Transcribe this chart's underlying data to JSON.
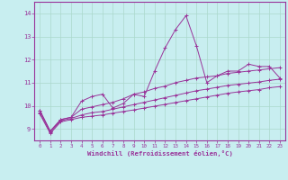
{
  "xlabel": "Windchill (Refroidissement éolien,°C)",
  "xlim": [
    -0.5,
    23.5
  ],
  "ylim": [
    8.5,
    14.5
  ],
  "xticks": [
    0,
    1,
    2,
    3,
    4,
    5,
    6,
    7,
    8,
    9,
    10,
    11,
    12,
    13,
    14,
    15,
    16,
    17,
    18,
    19,
    20,
    21,
    22,
    23
  ],
  "yticks": [
    9,
    10,
    11,
    12,
    13,
    14
  ],
  "background_color": "#c8eef0",
  "line_color": "#993399",
  "grid_color": "#aad8cc",
  "series": [
    [
      9.8,
      8.9,
      9.4,
      9.5,
      10.2,
      10.4,
      10.5,
      9.9,
      10.1,
      10.5,
      10.4,
      11.5,
      12.5,
      13.3,
      13.9,
      12.6,
      11.0,
      11.3,
      11.5,
      11.5,
      11.8,
      11.7,
      11.7,
      11.2
    ],
    [
      9.8,
      8.9,
      9.4,
      9.5,
      9.85,
      9.95,
      10.05,
      10.15,
      10.3,
      10.5,
      10.6,
      10.75,
      10.85,
      11.0,
      11.1,
      11.2,
      11.25,
      11.3,
      11.4,
      11.45,
      11.5,
      11.55,
      11.6,
      11.65
    ],
    [
      9.7,
      8.85,
      9.35,
      9.45,
      9.6,
      9.7,
      9.75,
      9.85,
      9.95,
      10.05,
      10.15,
      10.25,
      10.35,
      10.45,
      10.55,
      10.65,
      10.72,
      10.8,
      10.88,
      10.93,
      10.98,
      11.03,
      11.1,
      11.15
    ],
    [
      9.65,
      8.8,
      9.3,
      9.4,
      9.5,
      9.55,
      9.6,
      9.68,
      9.75,
      9.82,
      9.9,
      9.98,
      10.06,
      10.14,
      10.22,
      10.3,
      10.38,
      10.46,
      10.54,
      10.6,
      10.65,
      10.7,
      10.78,
      10.83
    ]
  ]
}
